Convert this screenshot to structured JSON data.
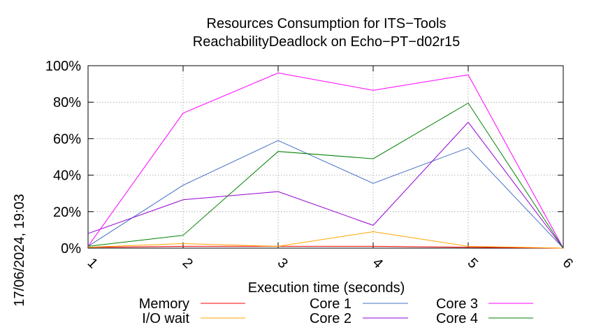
{
  "chart_data": {
    "type": "line",
    "title": "Resources Consumption for ITS−Tools",
    "subtitle": "ReachabilityDeadlock on Echo−PT−d02r15",
    "xlabel": "Execution time (seconds)",
    "ylabel": "",
    "side_label": "17/06/2024, 19:03",
    "x": [
      1,
      2,
      3,
      4,
      5,
      6
    ],
    "x_tick_labels": [
      "1",
      "2",
      "3",
      "4",
      "5",
      "6"
    ],
    "xlim": [
      1,
      6
    ],
    "ylim": [
      0,
      100
    ],
    "y_tick_values": [
      0,
      20,
      40,
      60,
      80,
      100
    ],
    "y_tick_labels": [
      "0%",
      "20%",
      "40%",
      "60%",
      "80%",
      "100%"
    ],
    "grid": true,
    "legend_position": "bottom",
    "series": [
      {
        "name": "Memory",
        "color": "#ff0000",
        "values": [
          0.5,
          1,
          1,
          1,
          0.5,
          0
        ]
      },
      {
        "name": "I/O wait",
        "color": "#ffa500",
        "values": [
          0.5,
          2.5,
          1,
          9,
          1,
          0
        ]
      },
      {
        "name": "Core 1",
        "color": "#4472c4",
        "values": [
          1,
          34.5,
          59,
          35.5,
          55,
          0
        ]
      },
      {
        "name": "Core 2",
        "color": "#9400d3",
        "values": [
          8,
          26.5,
          31,
          12.5,
          69,
          0
        ]
      },
      {
        "name": "Core 3",
        "color": "#ff00ff",
        "values": [
          1,
          74,
          96,
          86.5,
          95,
          0
        ]
      },
      {
        "name": "Core 4",
        "color": "#008000",
        "values": [
          1,
          7,
          53,
          49,
          79.5,
          0
        ]
      }
    ]
  }
}
